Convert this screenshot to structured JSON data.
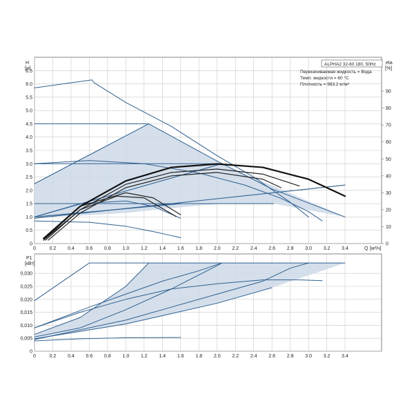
{
  "chart_data": [
    {
      "type": "line",
      "panel": "head",
      "ylabel": "H",
      "yunit": "[м]",
      "xlabel": "Q",
      "xunit": "[м³/ч]",
      "right_label": "eta",
      "right_unit": "[%]",
      "title": "ALPHA2 32-60 180, 50Hz",
      "info_lines": [
        "Перекачиваемая жидкость = Вода",
        "Темп. жидкости = 60 °C",
        "Плотность = 983.2 кг/м³"
      ],
      "xlim": [
        0,
        3.8
      ],
      "ylim": [
        0,
        7.0
      ],
      "y2lim": [
        0,
        110
      ],
      "x_ticks": [
        "0",
        "0.2",
        "0.4",
        "0.6",
        "0.8",
        "1.0",
        "1.2",
        "1.4",
        "1.6",
        "1.8",
        "2.0",
        "2.2",
        "2.4",
        "2.6",
        "2.8",
        "3.0",
        "3.2",
        "3.4"
      ],
      "x_tick_values": [
        0,
        0.2,
        0.4,
        0.6,
        0.8,
        1.0,
        1.2,
        1.4,
        1.6,
        1.8,
        2.0,
        2.2,
        2.4,
        2.6,
        2.8,
        3.0,
        3.2,
        3.4
      ],
      "y_ticks": [
        "0",
        "0.5",
        "1.0",
        "1.5",
        "2.0",
        "2.5",
        "3.0",
        "3.5",
        "4.0",
        "4.5",
        "5.0",
        "5.5",
        "6.0",
        "6.5"
      ],
      "y_tick_values": [
        0,
        0.5,
        1.0,
        1.5,
        2.0,
        2.5,
        3.0,
        3.5,
        4.0,
        4.5,
        5.0,
        5.5,
        6.0,
        6.5
      ],
      "y2_ticks": [
        "0",
        "10",
        "20",
        "30",
        "40",
        "50",
        "60",
        "70",
        "80",
        "90"
      ],
      "y2_tick_values": [
        0,
        10,
        20,
        30,
        40,
        50,
        60,
        70,
        80,
        90
      ],
      "grid": true,
      "shaded_region": {
        "x": [
          0,
          1.25,
          2.05,
          3.4,
          2.62,
          2.05,
          1.4,
          1.0,
          0.5,
          0,
          0
        ],
        "y": [
          2.25,
          4.5,
          3.0,
          1.0,
          1.5,
          1.5,
          1.3,
          1.15,
          1.05,
          1.0,
          2.25
        ]
      },
      "series": [
        {
          "kind": "head",
          "x": [
            0,
            0.63,
            0.65,
            1.0,
            1.5,
            2.0,
            2.4,
            2.8,
            3.0
          ],
          "y": [
            5.85,
            6.15,
            6.05,
            5.3,
            4.4,
            3.3,
            2.5,
            1.55,
            1.0
          ]
        },
        {
          "kind": "head",
          "x": [
            0,
            1.25,
            2.0,
            2.6,
            3.4
          ],
          "y": [
            4.5,
            4.5,
            3.1,
            2.05,
            1.0
          ]
        },
        {
          "kind": "head",
          "x": [
            0,
            0.6,
            1.2,
            1.8,
            2.3,
            2.7,
            3.0,
            3.15
          ],
          "y": [
            3.0,
            3.12,
            3.0,
            2.65,
            2.2,
            1.7,
            1.2,
            0.85
          ]
        },
        {
          "kind": "head",
          "x": [
            0,
            2.05
          ],
          "y": [
            3.0,
            3.0
          ]
        },
        {
          "kind": "head",
          "x": [
            0,
            2.62
          ],
          "y": [
            1.5,
            1.5
          ]
        },
        {
          "kind": "head",
          "x": [
            0,
            0.6,
            1.0,
            1.3,
            1.5,
            1.6
          ],
          "y": [
            0.85,
            0.8,
            0.65,
            0.45,
            0.3,
            0.22
          ]
        },
        {
          "kind": "head",
          "x": [
            0,
            0.5,
            1.0,
            1.3,
            1.5,
            1.6
          ],
          "y": [
            1.0,
            1.5,
            1.6,
            1.4,
            1.1,
            0.95
          ]
        },
        {
          "kind": "system",
          "x": [
            0,
            1.25
          ],
          "y": [
            2.25,
            4.5
          ]
        },
        {
          "kind": "system",
          "x": [
            0,
            2.05
          ],
          "y": [
            1.0,
            3.0
          ]
        },
        {
          "kind": "system",
          "x": [
            0,
            3.4
          ],
          "y": [
            0.95,
            2.2
          ]
        },
        {
          "kind": "system",
          "x": [
            0,
            1.6
          ],
          "y": [
            1.0,
            1.5
          ]
        },
        {
          "kind": "efficiency",
          "x": [
            0.1,
            0.5,
            1.0,
            1.5,
            2.0,
            2.5,
            3.0,
            3.4
          ],
          "y": [
            3,
            22,
            37,
            45,
            47,
            45,
            38,
            28
          ]
        },
        {
          "kind": "efficiency",
          "x": [
            0.12,
            0.5,
            1.0,
            1.5,
            2.0,
            2.5,
            2.9
          ],
          "y": [
            2,
            20,
            35,
            42,
            44,
            41,
            34
          ]
        },
        {
          "kind": "efficiency",
          "x": [
            0.15,
            0.5,
            1.0,
            1.5,
            2.0,
            2.5,
            2.7
          ],
          "y": [
            2,
            18,
            33,
            40,
            42,
            38,
            33
          ]
        },
        {
          "kind": "efficiency",
          "x": [
            0.1,
            0.5,
            1.0,
            1.3,
            1.6
          ],
          "y": [
            2,
            22,
            30,
            27,
            17
          ]
        },
        {
          "kind": "efficiency",
          "x": [
            0.1,
            0.5,
            0.9,
            1.2,
            1.55
          ],
          "y": [
            2,
            20,
            28,
            27,
            16
          ]
        }
      ]
    },
    {
      "type": "line",
      "panel": "power",
      "ylabel": "P1",
      "yunit": "[кВт]",
      "xlim": [
        0,
        3.8
      ],
      "ylim": [
        0,
        0.0375
      ],
      "x_ticks": [
        "0",
        "0.2",
        "0.4",
        "0.6",
        "0.8",
        "1.0",
        "1.2",
        "1.4",
        "1.6",
        "1.8",
        "2.0",
        "2.2",
        "2.4",
        "2.6",
        "2.8",
        "3.0",
        "3.2",
        "3.4"
      ],
      "x_tick_values": [
        0,
        0.2,
        0.4,
        0.6,
        0.8,
        1.0,
        1.2,
        1.4,
        1.6,
        1.8,
        2.0,
        2.2,
        2.4,
        2.6,
        2.8,
        3.0,
        3.2,
        3.4
      ],
      "y_ticks": [
        "0",
        "0,005",
        "0,010",
        "0,015",
        "0,020",
        "0,025",
        "0,030"
      ],
      "y_tick_values": [
        0,
        0.005,
        0.01,
        0.015,
        0.02,
        0.025,
        0.03
      ],
      "grid": true,
      "shaded_region": {
        "x": [
          0,
          0.5,
          1.0,
          1.25,
          3.4,
          2.6,
          2.0,
          1.4,
          1.0,
          0.5,
          0,
          0
        ],
        "y": [
          0.0065,
          0.013,
          0.025,
          0.034,
          0.034,
          0.0245,
          0.0185,
          0.0135,
          0.0105,
          0.0075,
          0.005,
          0.0065
        ]
      },
      "series": [
        {
          "x": [
            0,
            0.6,
            0.65,
            3.4
          ],
          "y": [
            0.0195,
            0.034,
            0.034,
            0.034
          ]
        },
        {
          "x": [
            0,
            0.5,
            1.0,
            1.25
          ],
          "y": [
            0.0065,
            0.013,
            0.025,
            0.034
          ]
        },
        {
          "x": [
            0,
            0.5,
            1.0,
            1.5,
            2.0,
            2.05
          ],
          "y": [
            0.0055,
            0.009,
            0.016,
            0.024,
            0.033,
            0.034
          ]
        },
        {
          "x": [
            0,
            1.0,
            2.0,
            2.6
          ],
          "y": [
            0.0048,
            0.0105,
            0.0185,
            0.0245
          ]
        },
        {
          "x": [
            0,
            1.0,
            1.5,
            2.0,
            2.5,
            2.8,
            3.0
          ],
          "y": [
            0.0045,
            0.012,
            0.017,
            0.022,
            0.027,
            0.032,
            0.034
          ]
        },
        {
          "x": [
            0,
            0.5,
            1.0,
            1.5,
            2.0,
            2.5,
            2.9,
            3.15
          ],
          "y": [
            0.009,
            0.015,
            0.02,
            0.024,
            0.026,
            0.0275,
            0.0275,
            0.0272
          ]
        },
        {
          "x": [
            0,
            0.6,
            1.0,
            1.4,
            1.8,
            2.05
          ],
          "y": [
            0.009,
            0.017,
            0.022,
            0.027,
            0.031,
            0.034
          ]
        },
        {
          "x": [
            0,
            0.5,
            1.0,
            1.6
          ],
          "y": [
            0.004,
            0.0048,
            0.0052,
            0.0053
          ]
        }
      ]
    }
  ]
}
